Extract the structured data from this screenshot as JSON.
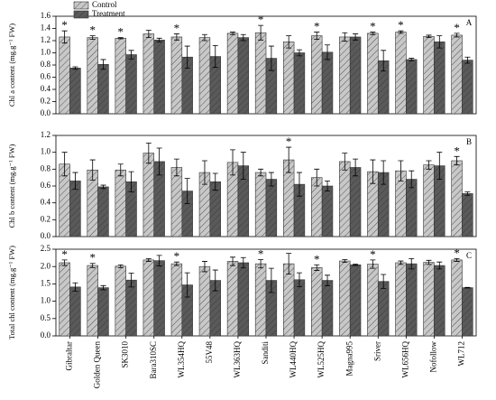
{
  "chart_data": [
    {
      "type": "bar",
      "ylabel": "Chl a content (mg.g⁻¹ FW)",
      "panel_label": "A",
      "legend": "top-left",
      "ylim": [
        0,
        1.6
      ],
      "yticks": [
        {
          "value": 0,
          "label": "0.0"
        },
        0.2,
        0.4,
        0.6,
        0.8,
        {
          "value": 1,
          "label": "1.0"
        },
        1.2,
        1.4,
        1.6
      ],
      "series": [
        {
          "name": "Control",
          "color": "#c8c8c8",
          "values": [
            1.26,
            1.25,
            1.24,
            1.31,
            1.26,
            1.25,
            1.32,
            1.33,
            1.18,
            1.28,
            1.26,
            1.32,
            1.34,
            1.27,
            1.29
          ],
          "errors": [
            0.1,
            0.03,
            0.01,
            0.06,
            0.05,
            0.05,
            0.02,
            0.12,
            0.1,
            0.06,
            0.07,
            0.02,
            0.02,
            0.02,
            0.03
          ]
        },
        {
          "name": "Treatment",
          "color": "#5a5a5a",
          "values": [
            0.75,
            0.81,
            0.97,
            1.21,
            0.93,
            0.94,
            1.25,
            0.91,
            1.0,
            1.01,
            1.26,
            0.87,
            0.89,
            1.18,
            0.88
          ],
          "errors": [
            0.02,
            0.08,
            0.07,
            0.03,
            0.18,
            0.18,
            0.05,
            0.2,
            0.05,
            0.12,
            0.05,
            0.17,
            0.02,
            0.1,
            0.05
          ]
        }
      ],
      "significance": [
        "*",
        "*",
        "*",
        null,
        "*",
        null,
        null,
        "*",
        null,
        "*",
        null,
        "*",
        "*",
        null,
        "*"
      ]
    },
    {
      "type": "bar",
      "ylabel": "Chl b content (mg.g⁻¹ FW)",
      "panel_label": "B",
      "ylim": [
        0,
        1.2
      ],
      "yticks": [
        {
          "value": 0,
          "label": "0.0"
        },
        0.2,
        0.4,
        0.6,
        0.8,
        {
          "value": 1,
          "label": "1.0"
        },
        1.2
      ],
      "series": [
        {
          "color": "#c8c8c8",
          "values": [
            0.86,
            0.79,
            0.79,
            0.99,
            0.82,
            0.76,
            0.88,
            0.76,
            0.91,
            0.7,
            0.89,
            0.77,
            0.78,
            0.85,
            0.9
          ],
          "errors": [
            0.14,
            0.12,
            0.07,
            0.12,
            0.1,
            0.14,
            0.15,
            0.04,
            0.15,
            0.1,
            0.1,
            0.14,
            0.12,
            0.05,
            0.05
          ]
        },
        {
          "color": "#5a5a5a",
          "values": [
            0.66,
            0.59,
            0.65,
            0.89,
            0.54,
            0.65,
            0.84,
            0.68,
            0.62,
            0.6,
            0.82,
            0.76,
            0.68,
            0.84,
            0.51
          ],
          "errors": [
            0.1,
            0.02,
            0.12,
            0.16,
            0.15,
            0.1,
            0.16,
            0.08,
            0.14,
            0.06,
            0.1,
            0.14,
            0.1,
            0.16,
            0.02
          ]
        }
      ],
      "significance": [
        null,
        null,
        null,
        null,
        null,
        null,
        null,
        null,
        "*",
        null,
        null,
        null,
        null,
        null,
        "*"
      ]
    },
    {
      "type": "bar",
      "ylabel": "Total chl content (mg.g⁻¹ FW)",
      "panel_label": "C",
      "ylim": [
        0,
        2.5
      ],
      "yticks": [
        {
          "value": 0,
          "label": "0.0"
        },
        0.5,
        {
          "value": 1,
          "label": "1.0"
        },
        1.5,
        {
          "value": 2,
          "label": "2.0"
        },
        2.5
      ],
      "categories": [
        "Gibraltar",
        "Golden Queen",
        "SK3010",
        "Bara310SC",
        "WL354HQ",
        "55V48",
        "WL363HQ",
        "Sanditi",
        "WL440HQ",
        "WL525HQ",
        "Magna995",
        "Sriver",
        "WL656HQ",
        "Nofollow",
        "WL712"
      ],
      "series": [
        {
          "color": "#c8c8c8",
          "values": [
            2.11,
            2.03,
            2.01,
            2.19,
            2.08,
            2.0,
            2.15,
            2.08,
            2.08,
            1.97,
            2.16,
            2.07,
            2.11,
            2.12,
            2.19
          ],
          "errors": [
            0.08,
            0.06,
            0.04,
            0.04,
            0.05,
            0.15,
            0.12,
            0.12,
            0.3,
            0.08,
            0.04,
            0.12,
            0.05,
            0.06,
            0.04
          ]
        },
        {
          "color": "#5a5a5a",
          "values": [
            1.41,
            1.39,
            1.61,
            2.17,
            1.47,
            1.6,
            2.11,
            1.6,
            1.62,
            1.6,
            2.05,
            1.57,
            2.08,
            2.03,
            1.39
          ],
          "errors": [
            0.12,
            0.06,
            0.2,
            0.15,
            0.35,
            0.3,
            0.15,
            0.35,
            0.2,
            0.15,
            0.02,
            0.2,
            0.15,
            0.1,
            0.01
          ]
        }
      ],
      "significance": [
        "*",
        "*",
        null,
        null,
        "*",
        null,
        null,
        "*",
        null,
        "*",
        null,
        "*",
        null,
        null,
        "*"
      ]
    }
  ]
}
